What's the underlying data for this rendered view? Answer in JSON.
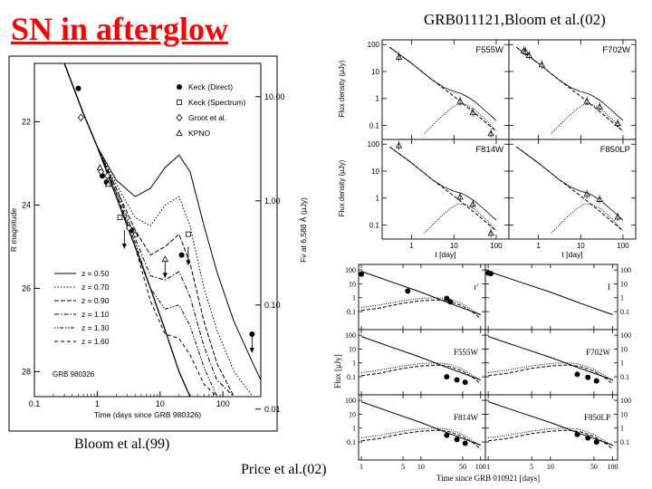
{
  "slide": {
    "title": "SN in afterglow",
    "caption_right_top": "GRB011121,Bloom et al.(02)",
    "caption_left_bottom": "Bloom et al.(99)",
    "caption_bottom": "Price et al.(02)"
  },
  "chart_data": [
    {
      "id": "bloom99",
      "type": "scatter",
      "xlabel": "Time (days since GRB 980326)",
      "ylabel": "R magnitude",
      "y2label": "Fν at 6,588 Å (μJy)",
      "x_scale": "log",
      "xlim": [
        0.1,
        400
      ],
      "ylim": [
        20.6,
        28.6
      ],
      "y_inverted": true,
      "x_ticks": [
        0.1,
        1,
        10,
        100
      ],
      "x_tick_labels": [
        "0.1",
        "1",
        "10",
        "100"
      ],
      "y_ticks": [
        22,
        24,
        26,
        28
      ],
      "y_tick_labels": [
        "22",
        "24",
        "26",
        "28"
      ],
      "y2_ticks": [
        10,
        1,
        0.1,
        0.01
      ],
      "y2_tick_labels": [
        "10.00",
        "1.00",
        "0.10",
        "0.01"
      ],
      "annotation": "GRB 980326",
      "legend_markers": [
        "Keck (Direct)",
        "Keck (Spectrum)",
        "Groot et al.",
        "KPNO"
      ],
      "legend_models": [
        "z = 0.50",
        "z = 0.70",
        "z = 0.90",
        "z = 1.10",
        "z = 1.30",
        "z = 1.60"
      ],
      "points_keck_direct": [
        {
          "x": 0.5,
          "y": 21.2
        },
        {
          "x": 1.2,
          "y": 23.3
        },
        {
          "x": 1.4,
          "y": 23.45
        },
        {
          "x": 3.5,
          "y": 24.6
        },
        {
          "x": 22,
          "y": 25.2
        },
        {
          "x": 290,
          "y": 27.1
        }
      ],
      "points_keck_spectrum": [
        {
          "x": 2.3,
          "y": 24.3
        },
        {
          "x": 28,
          "y": 24.7
        }
      ],
      "points_groot": [
        {
          "x": 0.55,
          "y": 21.9
        },
        {
          "x": 1.15,
          "y": 23.2
        },
        {
          "x": 1.45,
          "y": 23.3
        },
        {
          "x": 3.2,
          "y": 24.55
        }
      ],
      "points_kpno": [
        {
          "x": 1.1,
          "y": 23.1
        },
        {
          "x": 1.5,
          "y": 23.5
        },
        {
          "x": 4.0,
          "y": 24.7
        },
        {
          "x": 12,
          "y": 25.3
        }
      ],
      "upper_limits": [
        {
          "x": 2.7,
          "y": 24.6
        },
        {
          "x": 12,
          "y": 25.3
        },
        {
          "x": 28,
          "y": 25.0
        },
        {
          "x": 290,
          "y": 27.1
        }
      ],
      "models": [
        {
          "name": "z = 0.50",
          "x": [
            0.3,
            0.6,
            1,
            2,
            4,
            7,
            12,
            20,
            30,
            50,
            80,
            150,
            300,
            400
          ],
          "y": [
            20.6,
            21.8,
            22.6,
            23.4,
            23.8,
            23.6,
            23.1,
            22.8,
            23.2,
            24.5,
            25.6,
            26.8,
            27.8,
            28.2
          ]
        },
        {
          "name": "z = 0.70",
          "x": [
            0.3,
            0.6,
            1,
            2,
            4,
            7,
            12,
            20,
            30,
            50,
            80,
            150,
            300
          ],
          "y": [
            20.6,
            21.8,
            22.6,
            23.5,
            24.3,
            24.5,
            24.0,
            23.8,
            24.5,
            26.0,
            27.0,
            28.0,
            28.6
          ]
        },
        {
          "name": "z = 0.90",
          "x": [
            0.3,
            0.6,
            1,
            2,
            4,
            7,
            12,
            20,
            30,
            50,
            80,
            150
          ],
          "y": [
            20.6,
            21.8,
            22.6,
            23.6,
            24.6,
            25.2,
            25.0,
            24.7,
            25.4,
            26.8,
            27.8,
            28.6
          ]
        },
        {
          "name": "z = 1.10",
          "x": [
            0.3,
            0.6,
            1,
            2,
            4,
            7,
            12,
            20,
            30,
            50,
            80,
            150
          ],
          "y": [
            20.6,
            21.8,
            22.6,
            23.6,
            24.8,
            25.7,
            25.8,
            25.6,
            26.2,
            27.4,
            28.2,
            28.6
          ]
        },
        {
          "name": "z = 1.30",
          "x": [
            0.3,
            0.6,
            1,
            2,
            4,
            7,
            12,
            20,
            30,
            50,
            80
          ],
          "y": [
            20.6,
            21.8,
            22.6,
            23.7,
            24.9,
            26.0,
            26.5,
            26.4,
            26.9,
            27.9,
            28.6
          ]
        },
        {
          "name": "z = 1.60",
          "x": [
            0.3,
            0.6,
            1,
            2,
            4,
            7,
            12,
            20,
            30,
            50,
            80
          ],
          "y": [
            20.6,
            21.8,
            22.6,
            23.7,
            25.0,
            26.3,
            27.1,
            27.2,
            27.6,
            28.3,
            28.6
          ]
        },
        {
          "name": "power-law",
          "x": [
            0.3,
            0.6,
            1,
            2,
            4,
            7,
            12,
            20,
            30
          ],
          "y": [
            20.6,
            21.8,
            22.6,
            23.8,
            25.0,
            26.0,
            27.0,
            28.0,
            28.6
          ]
        }
      ]
    },
    {
      "id": "bloom02",
      "type": "line",
      "xlabel": "t [day]",
      "ylabel": "Flux density (μJy)",
      "x_scale": "log",
      "y_scale": "log",
      "xlim": [
        0.2,
        200
      ],
      "ylim": [
        0.03,
        150
      ],
      "x_tick_labels": [
        "1",
        "10",
        "100"
      ],
      "y_tick_labels": [
        "100",
        "10",
        "1",
        "0.1"
      ],
      "panels": [
        {
          "label": "F555W",
          "points": [
            {
              "x": 0.5,
              "y": 35
            },
            {
              "x": 14,
              "y": 0.8
            },
            {
              "x": 28,
              "y": 0.3
            },
            {
              "x": 75,
              "y": 0.05
            }
          ]
        },
        {
          "label": "F702W",
          "points": [
            {
              "x": 0.45,
              "y": 60
            },
            {
              "x": 0.5,
              "y": 55
            },
            {
              "x": 0.6,
              "y": 40
            },
            {
              "x": 1.2,
              "y": 18
            },
            {
              "x": 14,
              "y": 0.8
            },
            {
              "x": 28,
              "y": 0.5
            },
            {
              "x": 75,
              "y": 0.12
            }
          ]
        },
        {
          "label": "F814W",
          "points": [
            {
              "x": 0.5,
              "y": 90
            },
            {
              "x": 14,
              "y": 1.1
            },
            {
              "x": 28,
              "y": 0.6
            },
            {
              "x": 75,
              "y": 0.05
            }
          ]
        },
        {
          "label": "F850LP",
          "points": [
            {
              "x": 14,
              "y": 1.4
            },
            {
              "x": 28,
              "y": 0.9
            },
            {
              "x": 75,
              "y": 0.2
            }
          ]
        }
      ],
      "model_total": {
        "x": [
          0.3,
          1,
          3,
          6,
          10,
          15,
          20,
          30,
          50,
          100
        ],
        "y": [
          80,
          20,
          5,
          2.5,
          1.8,
          1.5,
          1.2,
          0.8,
          0.4,
          0.15
        ]
      },
      "model_afterglow": {
        "x": [
          0.3,
          1,
          3,
          10,
          30,
          100
        ],
        "y": [
          80,
          20,
          5,
          1.2,
          0.3,
          0.06
        ]
      },
      "model_sn": {
        "x": [
          2,
          4,
          8,
          12,
          18,
          30,
          60,
          100
        ],
        "y": [
          0.05,
          0.15,
          0.4,
          0.6,
          0.6,
          0.4,
          0.15,
          0.06
        ]
      }
    },
    {
      "id": "price02",
      "type": "line",
      "xlabel": "Time since GRB 010921 [days]",
      "ylabel": "Flux [μJy]",
      "x_scale": "log",
      "y_scale": "log",
      "xlim": [
        0.9,
        120
      ],
      "ylim": [
        0.005,
        250
      ],
      "x_tick_labels_left": [
        "1",
        "5",
        "10",
        "50",
        "100"
      ],
      "x_tick_labels_right": [
        "1",
        "5",
        "10",
        "50",
        "100"
      ],
      "y_tick_labels": [
        "100",
        "10",
        "1",
        "0.1"
      ],
      "panels": [
        {
          "label": "r'",
          "points": [
            {
              "x": 1.0,
              "y": 50
            },
            {
              "x": 6,
              "y": 3
            },
            {
              "x": 27,
              "y": 0.9
            },
            {
              "x": 31,
              "y": 0.5
            }
          ]
        },
        {
          "label": "I",
          "points": [
            {
              "x": 1.0,
              "y": 60
            },
            {
              "x": 1.1,
              "y": 55
            }
          ]
        },
        {
          "label": "F555W",
          "points": [
            {
              "x": 27,
              "y": 0.1
            },
            {
              "x": 40,
              "y": 0.06
            },
            {
              "x": 55,
              "y": 0.04
            }
          ]
        },
        {
          "label": "F702W",
          "points": [
            {
              "x": 27,
              "y": 0.15
            },
            {
              "x": 40,
              "y": 0.09
            },
            {
              "x": 55,
              "y": 0.05
            }
          ]
        },
        {
          "label": "F814W",
          "points": [
            {
              "x": 27,
              "y": 0.3
            },
            {
              "x": 40,
              "y": 0.15
            },
            {
              "x": 55,
              "y": 0.08
            }
          ]
        },
        {
          "label": "F850LP",
          "points": [
            {
              "x": 27,
              "y": 0.35
            },
            {
              "x": 40,
              "y": 0.2
            },
            {
              "x": 55,
              "y": 0.1
            }
          ]
        }
      ],
      "model_afterglow": {
        "x": [
          1,
          3,
          10,
          30,
          100
        ],
        "y": [
          80,
          15,
          2.5,
          0.4,
          0.06
        ]
      },
      "model_sn_1": {
        "x": [
          1,
          2,
          5,
          10,
          20,
          30,
          50,
          80,
          100
        ],
        "y": [
          0.2,
          0.3,
          0.6,
          0.9,
          1.0,
          0.8,
          0.35,
          0.1,
          0.05
        ]
      },
      "model_sn_2": {
        "x": [
          1,
          2,
          5,
          10,
          20,
          30,
          50,
          80,
          100
        ],
        "y": [
          0.12,
          0.18,
          0.4,
          0.6,
          0.7,
          0.55,
          0.25,
          0.07,
          0.03
        ]
      }
    }
  ]
}
